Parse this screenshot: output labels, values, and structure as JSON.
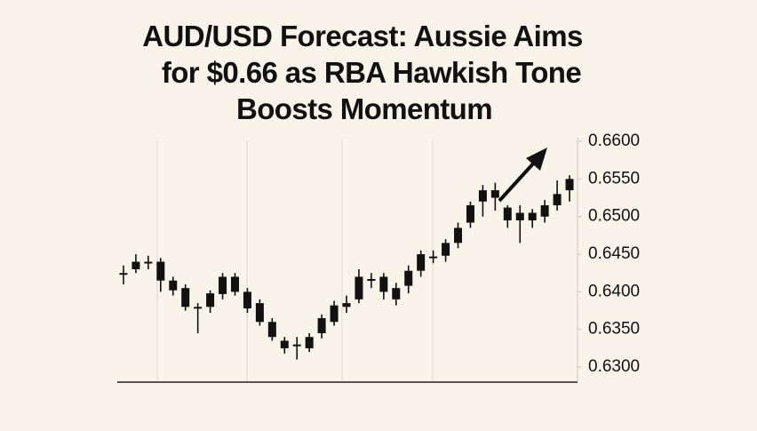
{
  "chart_data": {
    "type": "candlestick",
    "title": [
      "AUD/USD Forecast: Aussie Aims",
      "for $0.66 as RBA Hawkish Tone",
      "Boosts Momentum"
    ],
    "color": "#111111",
    "open": [
      0.6425,
      0.643,
      0.644,
      0.644,
      0.6415,
      0.6405,
      0.638,
      0.638,
      0.6397,
      0.642,
      0.64,
      0.6385,
      0.636,
      0.6335,
      0.633,
      0.6325,
      0.6345,
      0.636,
      0.638,
      0.639,
      0.6415,
      0.642,
      0.6405,
      0.6408,
      0.6428,
      0.6445,
      0.6448,
      0.6465,
      0.6492,
      0.652,
      0.6535,
      0.6512,
      0.6505,
      0.6495,
      0.65,
      0.6515,
      0.6535
    ],
    "high": [
      0.6435,
      0.645,
      0.6448,
      0.6445,
      0.642,
      0.641,
      0.6385,
      0.6402,
      0.6425,
      0.6425,
      0.6405,
      0.639,
      0.6365,
      0.634,
      0.634,
      0.6345,
      0.637,
      0.6388,
      0.6395,
      0.643,
      0.6425,
      0.6425,
      0.6412,
      0.6435,
      0.6455,
      0.6455,
      0.647,
      0.6492,
      0.652,
      0.6542,
      0.6545,
      0.6515,
      0.6515,
      0.651,
      0.6522,
      0.6548,
      0.6555
    ],
    "low": [
      0.641,
      0.6425,
      0.643,
      0.64,
      0.6395,
      0.6375,
      0.6345,
      0.6372,
      0.639,
      0.6395,
      0.6372,
      0.6355,
      0.6335,
      0.6318,
      0.631,
      0.632,
      0.6338,
      0.6355,
      0.6372,
      0.6385,
      0.6405,
      0.639,
      0.6382,
      0.6398,
      0.642,
      0.6438,
      0.644,
      0.6458,
      0.6485,
      0.65,
      0.6508,
      0.6485,
      0.6465,
      0.6485,
      0.6492,
      0.6508,
      0.652
    ],
    "close": [
      0.6425,
      0.644,
      0.6438,
      0.6415,
      0.6402,
      0.638,
      0.6378,
      0.6398,
      0.642,
      0.64,
      0.6378,
      0.636,
      0.634,
      0.6325,
      0.6328,
      0.634,
      0.6365,
      0.6382,
      0.6385,
      0.642,
      0.6417,
      0.64,
      0.639,
      0.6428,
      0.645,
      0.6447,
      0.6465,
      0.6485,
      0.6515,
      0.6535,
      0.6525,
      0.6495,
      0.6495,
      0.6505,
      0.6515,
      0.653,
      0.655
    ],
    "ylim": [
      0.628,
      0.661
    ],
    "yticks": [
      {
        "value": 0.63,
        "label": "0.6300"
      },
      {
        "value": 0.635,
        "label": "0.6350"
      },
      {
        "value": 0.64,
        "label": "0.6400"
      },
      {
        "value": 0.645,
        "label": "0.6450"
      },
      {
        "value": 0.65,
        "label": "0.6500"
      },
      {
        "value": 0.655,
        "label": "0.6550"
      },
      {
        "value": 0.66,
        "label": "0.6600"
      }
    ]
  }
}
